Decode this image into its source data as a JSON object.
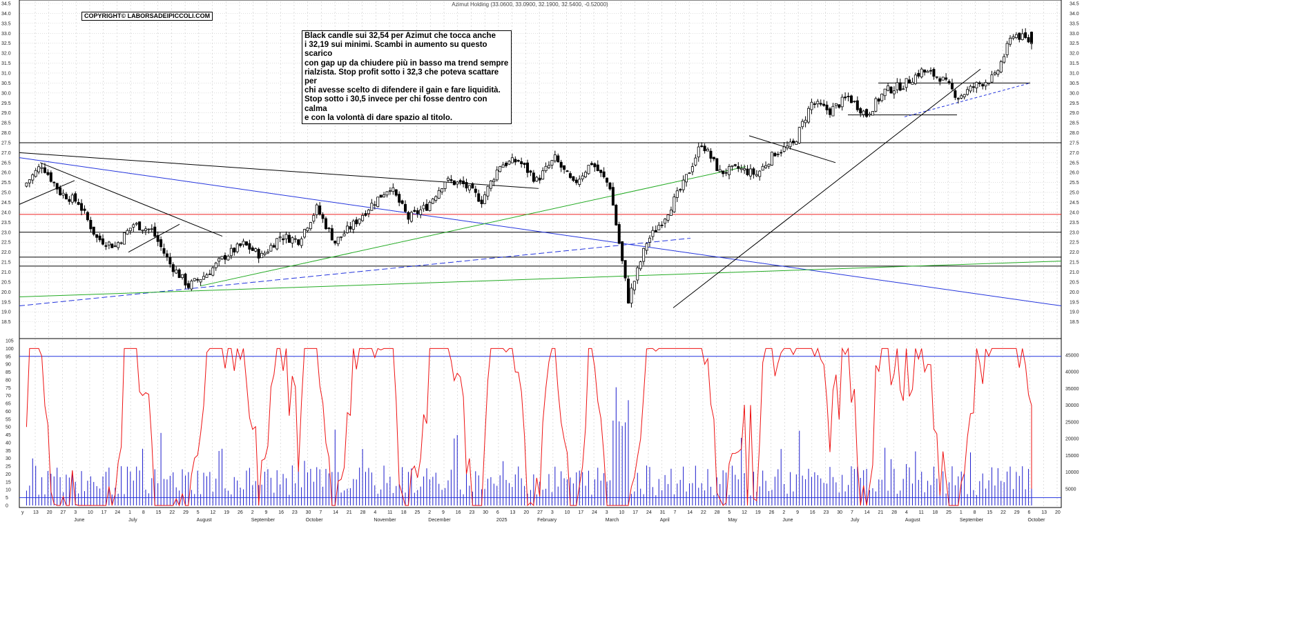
{
  "header": {
    "title": "Azimut Holding (33.0600, 33.0900, 32.1900, 32.5400, -0.52000)",
    "copyright": "COPYRIGHT© LABORSADEIPICCOLI.COM"
  },
  "annotation": {
    "text": "Black candle sui 32,54 per Azimut che tocca anche\ni 32,19 sui minimi. Scambi in aumento su questo scarico\ncon gap up da chiudere più in basso ma trend sempre\nrialzista. Stop profit sotto i 32,3 che poteva scattare per\nchi avesse scelto di difendere il gain e fare liquidità.\nStop sotto i 30,5 invece per chi fosse dentro con calma\ne con la volontà di dare spazio al titolo."
  },
  "colors": {
    "candle": "#000000",
    "grid": "#c8c8c8",
    "blue": "#2233dd",
    "green": "#22aa22",
    "red": "#ee2222",
    "oscillator": "#ee1111",
    "volume": "#1a1acc"
  },
  "chart_data": [
    {
      "type": "candlestick",
      "title": "Azimut Holding (33.0600, 33.0900, 32.1900, 32.5400, -0.52000)",
      "ylim": [
        18,
        34.5
      ],
      "y_ticks": [
        "18.5",
        "19.0",
        "19.5",
        "20.0",
        "20.5",
        "21.0",
        "21.5",
        "22.0",
        "22.5",
        "23.0",
        "23.5",
        "24.0",
        "24.5",
        "25.0",
        "25.5",
        "26.0",
        "26.5",
        "27.0",
        "27.5",
        "28.0",
        "28.5",
        "29.0",
        "29.5",
        "30.0",
        "30.5",
        "31.0",
        "31.5",
        "32.0",
        "32.5",
        "33.0",
        "33.5",
        "34.0",
        "34.5"
      ],
      "last_bar": {
        "open": 33.06,
        "high": 33.09,
        "low": 32.19,
        "close": 32.54,
        "change": -0.52
      },
      "close_path": [
        [
          "May 2024",
          25.3
        ],
        [
          "27 May",
          26.4
        ],
        [
          "3 Jun",
          25.0
        ],
        [
          "10 Jun",
          24.5
        ],
        [
          "17 Jun",
          22.7
        ],
        [
          "1 Jul",
          22.3
        ],
        [
          "15 Jul",
          23.4
        ],
        [
          "29 Jul",
          23.1
        ],
        [
          "5 Aug",
          21.4
        ],
        [
          "5 Aug",
          20.3
        ],
        [
          "12 Aug",
          20.9
        ],
        [
          "19 Aug",
          21.8
        ],
        [
          "2 Sep",
          22.4
        ],
        [
          "16 Sep",
          21.8
        ],
        [
          "30 Sep",
          22.8
        ],
        [
          "14 Oct",
          22.6
        ],
        [
          "21 Oct",
          24.2
        ],
        [
          "4 Nov",
          22.5
        ],
        [
          "18 Nov",
          23.4
        ],
        [
          "2 Dec",
          24.4
        ],
        [
          "9 Dec",
          25.3
        ],
        [
          "16 Dec",
          23.7
        ],
        [
          "30 Dec",
          24.3
        ],
        [
          "6 Jan",
          25.6
        ],
        [
          "20 Jan",
          25.4
        ],
        [
          "27 Jan",
          24.6
        ],
        [
          "3 Feb",
          26.4
        ],
        [
          "10 Feb",
          26.6
        ],
        [
          "24 Feb",
          25.6
        ],
        [
          "3 Mar",
          26.7
        ],
        [
          "10 Mar",
          25.4
        ],
        [
          "24 Mar",
          26.5
        ],
        [
          "31 Mar",
          25.3
        ],
        [
          "7 Apr",
          19.6
        ],
        [
          "14 Apr",
          22.5
        ],
        [
          "28 Apr",
          23.8
        ],
        [
          "5 May",
          25.4
        ],
        [
          "12 May",
          27.5
        ],
        [
          "19 May",
          26.0
        ],
        [
          "2 Jun",
          26.2
        ],
        [
          "16 Jun",
          25.9
        ],
        [
          "23 Jun",
          27.0
        ],
        [
          "30 Jun",
          27.4
        ],
        [
          "7 Jul",
          29.5
        ],
        [
          "14 Jul",
          29.1
        ],
        [
          "21 Jul",
          29.8
        ],
        [
          "28 Jul",
          28.9
        ],
        [
          "4 Aug",
          30.1
        ],
        [
          "11 Aug",
          30.4
        ],
        [
          "18 Aug",
          31.1
        ],
        [
          "25 Aug",
          30.8
        ],
        [
          "1 Sep",
          29.8
        ],
        [
          "15 Sep",
          30.4
        ],
        [
          "22 Sep",
          30.8
        ],
        [
          "29 Sep",
          33.0
        ],
        [
          "6 Oct",
          32.54
        ]
      ],
      "horizontal_levels": [
        {
          "value": 27.5,
          "color": "black"
        },
        {
          "value": 23.9,
          "color": "red"
        },
        {
          "value": 23.0,
          "color": "black"
        },
        {
          "value": 21.75,
          "color": "black"
        },
        {
          "value": 21.3,
          "color": "black"
        },
        {
          "value": 30.5,
          "color": "black",
          "segment": "Jul–Sep"
        },
        {
          "value": 28.9,
          "color": "black",
          "segment": "Jul–Aug"
        }
      ],
      "x_labels": {
        "row1": [
          "13",
          "20",
          "27",
          "3",
          "10",
          "17",
          "24",
          "1",
          "8",
          "15",
          "22",
          "29",
          "5",
          "12",
          "19",
          "26",
          "2",
          "9",
          "16",
          "23",
          "30",
          "7",
          "14",
          "21",
          "28",
          "4",
          "11",
          "18",
          "25",
          "2",
          "9",
          "16",
          "23",
          "30",
          "6",
          "13",
          "20",
          "27",
          "3",
          "10",
          "17",
          "24",
          "3",
          "10",
          "17",
          "24",
          "31",
          "7",
          "14",
          "22",
          "28",
          "5",
          "12",
          "19",
          "26",
          "2",
          "9",
          "16",
          "23",
          "30",
          "7",
          "14",
          "21",
          "28",
          "4",
          "11",
          "18",
          "25",
          "1",
          "8",
          "15",
          "22",
          "29",
          "6",
          "13",
          "20"
        ],
        "row2": [
          "June",
          "July",
          "August",
          "September",
          "October",
          "November",
          "December",
          "2025",
          "February",
          "March",
          "April",
          "May",
          "June",
          "July",
          "August",
          "September",
          "October"
        ]
      }
    },
    {
      "type": "line",
      "name": "oscillator",
      "ylim": [
        0,
        105
      ],
      "y_ticks": [
        "0",
        "5",
        "10",
        "15",
        "20",
        "25",
        "30",
        "35",
        "40",
        "45",
        "50",
        "55",
        "60",
        "65",
        "70",
        "75",
        "80",
        "85",
        "90",
        "95",
        "100",
        "105"
      ],
      "bands": [
        5,
        95
      ]
    },
    {
      "type": "bar",
      "name": "volume",
      "ylim": [
        0,
        45000
      ],
      "y_ticks": [
        "5000",
        "10000",
        "15000",
        "20000",
        "25000",
        "30000",
        "35000",
        "40000",
        "45000"
      ]
    }
  ]
}
